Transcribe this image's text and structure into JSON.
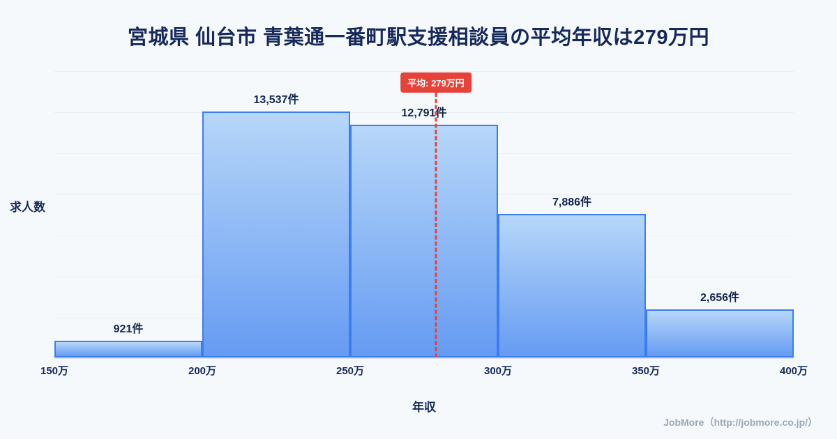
{
  "title": "宮城県 仙台市 青葉通一番町駅支援相談員の平均年収は279万円",
  "y_axis_label": "求人数",
  "x_axis_label": "年収",
  "average_badge": "平均: 279万円",
  "footer": "JobMore（http://jobmore.co.jp/）",
  "chart_data": {
    "type": "bar",
    "title": "宮城県 仙台市 青葉通一番町駅支援相談員の平均年収は279万円",
    "xlabel": "年収",
    "ylabel": "求人数",
    "categories": [
      "150万-200万",
      "200万-250万",
      "250万-300万",
      "300万-350万",
      "350万-400万"
    ],
    "values": [
      921,
      13537,
      12791,
      7886,
      2656
    ],
    "value_labels": [
      "921件",
      "13,537件",
      "12,791件",
      "7,886件",
      "2,656件"
    ],
    "x_ticks": [
      "150万",
      "200万",
      "250万",
      "300万",
      "350万",
      "400万"
    ],
    "x_range": [
      150,
      400
    ],
    "average": 279,
    "average_label": "平均: 279万円",
    "grid": true,
    "legend": "none",
    "colors": {
      "background": "#f6f9fc",
      "title": "#16295a",
      "bar_fill_top": "#b7d7f9",
      "bar_fill_bottom": "#659bf2",
      "bar_border": "#3b7df0",
      "average_line": "#e5433a",
      "badge_bg": "#e5433a",
      "badge_text": "#ffffff",
      "footer_text": "#9aa7b8"
    }
  }
}
